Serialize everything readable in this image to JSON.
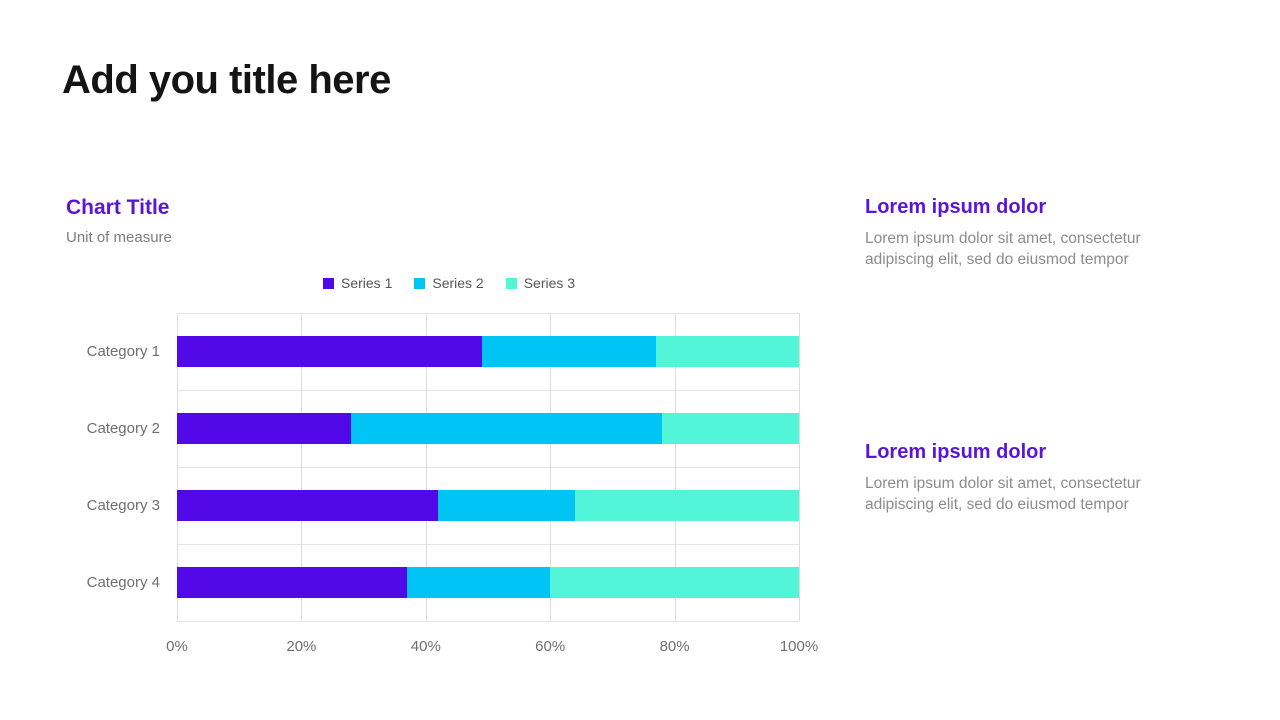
{
  "slide": {
    "title": "Add you title here"
  },
  "chart": {
    "title": "Chart Title",
    "subtitle": "Unit of measure"
  },
  "chart_data": {
    "type": "bar",
    "orientation": "horizontal",
    "stacked": true,
    "unit": "%",
    "title": "Chart Title",
    "xlabel": "",
    "ylabel": "Unit of measure",
    "categories": [
      "Category 1",
      "Category 2",
      "Category 3",
      "Category 4"
    ],
    "series": [
      {
        "name": "Series 1",
        "color": "#5209e8",
        "values": [
          49,
          28,
          42,
          37
        ]
      },
      {
        "name": "Series 2",
        "color": "#00c4f4",
        "values": [
          28,
          50,
          22,
          23
        ]
      },
      {
        "name": "Series 3",
        "color": "#52f5d8",
        "values": [
          23,
          22,
          36,
          40
        ]
      }
    ],
    "x_ticks": [
      "0%",
      "20%",
      "40%",
      "60%",
      "80%",
      "100%"
    ],
    "xlim": [
      0,
      100
    ],
    "grid": true,
    "legend_position": "top-center"
  },
  "text_blocks": [
    {
      "heading": "Lorem ipsum dolor",
      "body": "Lorem ipsum dolor sit amet, consectetur adipiscing elit, sed do eiusmod tempor"
    },
    {
      "heading": "Lorem ipsum dolor",
      "body": "Lorem ipsum dolor sit amet, consectetur adipiscing elit, sed do eiusmod tempor"
    }
  ],
  "colors": {
    "accent_purple": "#5a15d8",
    "series1": "#5209e8",
    "series2": "#00c4f4",
    "series3": "#52f5d8",
    "gridline": "#dcdcdc",
    "body_text": "#8c8c8c"
  }
}
